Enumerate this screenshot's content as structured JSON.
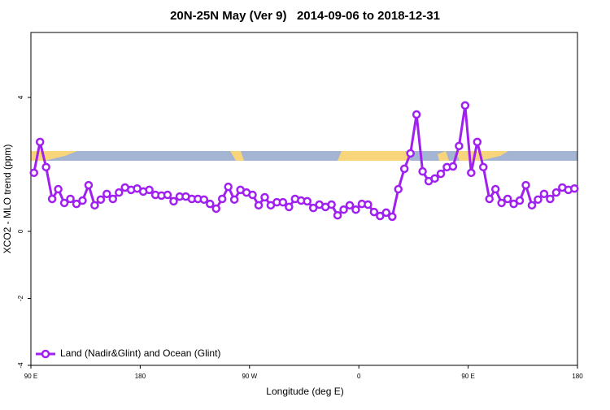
{
  "chart_data": {
    "type": "line",
    "title": "20N-25N May (Ver 9)   2014-09-06 to 2018-12-31",
    "x_label": "Longitude (deg E)",
    "y_label": "XCO2 - MLO trend (ppm)",
    "xlim": [
      90,
      540
    ],
    "xticks": [
      {
        "value": 90,
        "label": "90 E"
      },
      {
        "value": 180,
        "label": "180"
      },
      {
        "value": 270,
        "label": "90 W"
      },
      {
        "value": 360,
        "label": "0"
      },
      {
        "value": 450,
        "label": "90 E"
      },
      {
        "value": 540,
        "label": "180"
      }
    ],
    "ylim": [
      -4,
      5.94
    ],
    "yticks": [
      -4,
      -2,
      0,
      4
    ],
    "legend": "bottom-left",
    "x": [
      92.5,
      97.5,
      102.5,
      107.5,
      112.5,
      117.5,
      122.5,
      127.5,
      132.5,
      137.5,
      142.5,
      147.5,
      152.5,
      157.5,
      162.5,
      167.5,
      172.5,
      177.5,
      182.5,
      187.5,
      192.5,
      197.5,
      202.5,
      207.5,
      212.5,
      217.5,
      222.5,
      227.5,
      232.5,
      237.5,
      242.5,
      247.5,
      252.5,
      257.5,
      262.5,
      267.5,
      272.5,
      277.5,
      282.5,
      287.5,
      292.5,
      297.5,
      302.5,
      307.5,
      312.5,
      317.5,
      322.5,
      327.5,
      332.5,
      337.5,
      342.5,
      347.5,
      352.5,
      357.5,
      362.5,
      367.5,
      372.5,
      377.5,
      382.5,
      387.5,
      392.5,
      397.5,
      402.5,
      407.5,
      412.5,
      417.5,
      422.5,
      427.5,
      432.5,
      437.5,
      442.5,
      447.5,
      452.5,
      457.5,
      462.5,
      467.5,
      472.5,
      477.5,
      482.5,
      487.5,
      492.5,
      497.5,
      502.5,
      507.5,
      512.5,
      517.5,
      522.5,
      527.5,
      532.5,
      537.5
    ],
    "series": [
      {
        "name": "Land (Nadir&Glint) and Ocean (Glint)",
        "color": "#a020f0",
        "values": [
          1.75,
          2.67,
          1.92,
          0.97,
          1.26,
          0.85,
          0.97,
          0.82,
          0.92,
          1.38,
          0.78,
          0.95,
          1.12,
          0.97,
          1.16,
          1.31,
          1.24,
          1.28,
          1.19,
          1.24,
          1.09,
          1.07,
          1.09,
          0.9,
          1.04,
          1.04,
          0.97,
          0.97,
          0.95,
          0.82,
          0.68,
          0.97,
          1.33,
          0.95,
          1.24,
          1.16,
          1.09,
          0.78,
          1.02,
          0.78,
          0.87,
          0.87,
          0.73,
          0.97,
          0.92,
          0.9,
          0.7,
          0.8,
          0.73,
          0.8,
          0.48,
          0.65,
          0.78,
          0.65,
          0.82,
          0.8,
          0.58,
          0.46,
          0.56,
          0.44,
          1.26,
          1.87,
          2.33,
          3.49,
          1.79,
          1.5,
          1.58,
          1.72,
          1.92,
          1.94,
          2.55,
          3.76,
          1.75,
          2.67,
          1.92,
          0.97,
          1.26,
          0.85,
          0.97,
          0.82,
          0.92,
          1.38,
          0.78,
          0.95,
          1.12,
          0.97,
          1.16,
          1.31,
          1.24,
          1.28
        ]
      }
    ]
  }
}
